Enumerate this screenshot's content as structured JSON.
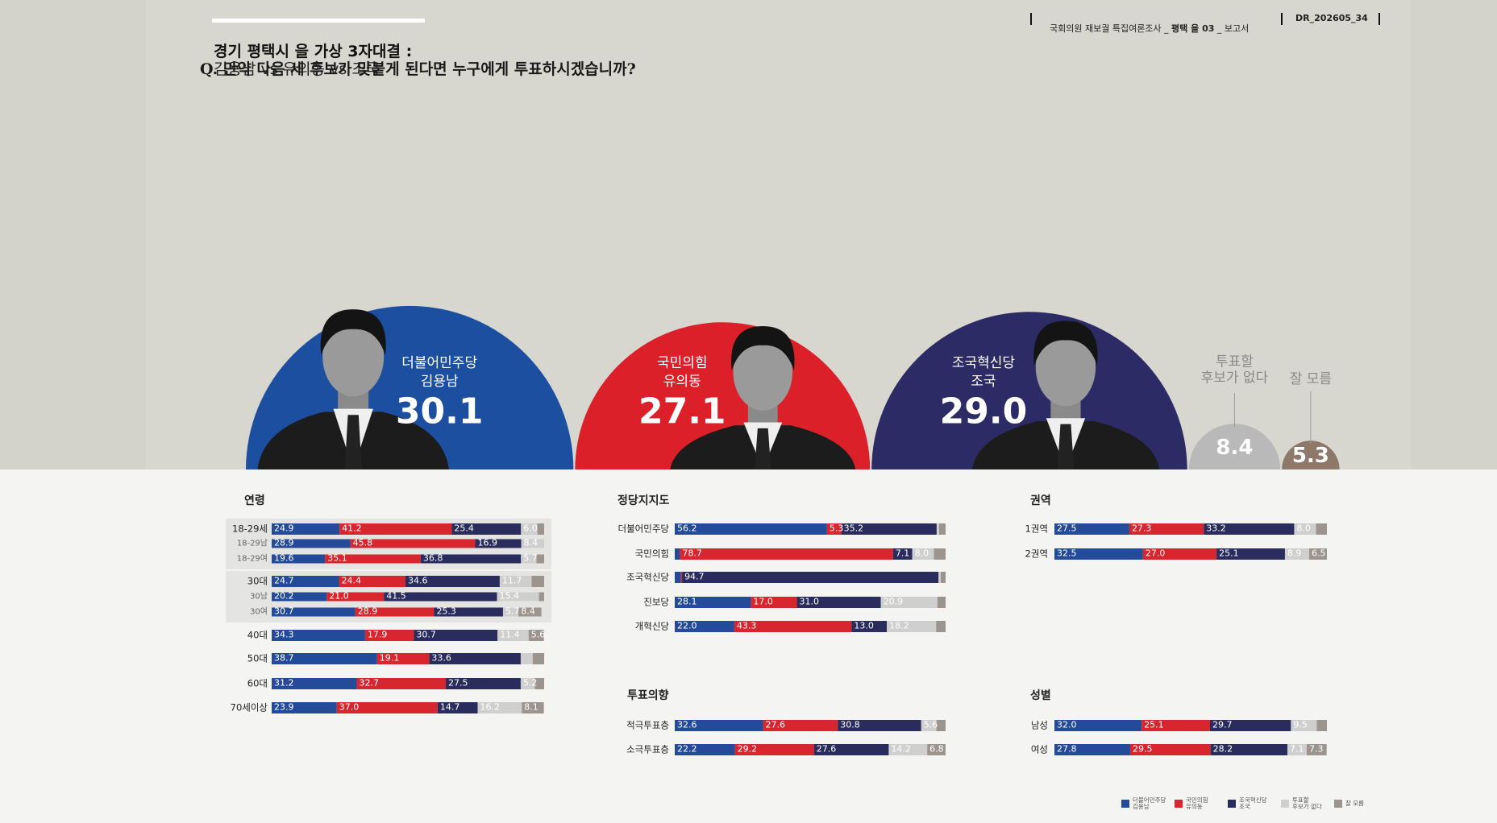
{
  "header": {
    "title": "경기 평택시 을 가상 3자대결 :",
    "subtitle": "김용남 vs 유의동 vs 조국",
    "question": "Q. 만약 다음 세 후보가 맞붙게 된다면 누구에게 투표하시겠습니까?",
    "survey": [
      "국회의원 재보궐 특집여론조사 _ ",
      "평택 을 03",
      " _ 보고서"
    ],
    "code": "DR_202605_34"
  },
  "chart_data": [
    {
      "type": "semicircle",
      "parties": [
        "더불어민주당",
        "국민의힘",
        "조국혁신당",
        null,
        null
      ],
      "categories": [
        "김용남",
        "유의동",
        "조국",
        "투표할\n후보가 없다",
        "잘 모름"
      ],
      "values": [
        30.1,
        27.1,
        29.0,
        8.4,
        5.3
      ],
      "value_labels": [
        "30.1",
        "27.1",
        "29.0",
        "8.4",
        "5.3"
      ],
      "colors": [
        "#1c4fa0",
        "#dc2029",
        "#2d2b66",
        "#b9b9b9",
        "#8d786a"
      ]
    },
    {
      "type": "stacked-bar",
      "xlim": [
        0,
        100
      ],
      "series": [
        {
          "name": "더불어민주당\n김용남",
          "color": "#234b9a"
        },
        {
          "name": "국민의힘\n유의동",
          "color": "#d8262e"
        },
        {
          "name": "조국혁신당\n조국",
          "color": "#2a2c5e"
        },
        {
          "name": "투표할\n후보가 없다",
          "color": "#cfcfcf"
        },
        {
          "name": "잘 모름",
          "color": "#9c948e"
        }
      ],
      "groups": [
        {
          "title": "연령",
          "categories": [
            "18-29세",
            "18-29남",
            "18-29여",
            "30대",
            "30남",
            "30여",
            "40대",
            "50대",
            "60대",
            "70세이상"
          ],
          "values": [
            [
              24.9,
              41.2,
              25.4,
              6.0,
              2.5
            ],
            [
              28.9,
              45.8,
              16.9,
              8.4,
              0
            ],
            [
              19.6,
              35.1,
              36.8,
              5.7,
              2.8
            ],
            [
              24.7,
              24.4,
              34.6,
              11.7,
              4.6
            ],
            [
              20.2,
              21.0,
              41.5,
              15.4,
              1.9
            ],
            [
              30.7,
              28.9,
              25.3,
              5.7,
              8.4
            ],
            [
              34.3,
              17.9,
              30.7,
              11.4,
              5.6
            ],
            [
              38.7,
              19.1,
              33.6,
              4.4,
              4.2
            ],
            [
              31.2,
              32.7,
              27.5,
              5.2,
              3.4
            ],
            [
              23.9,
              37.0,
              14.7,
              16.2,
              8.1
            ]
          ],
          "value_labels": [
            [
              "24.9",
              "41.2",
              "25.4",
              "6.0",
              null
            ],
            [
              "28.9",
              "45.8",
              "16.9",
              "8.4",
              null
            ],
            [
              "19.6",
              "35.1",
              "36.8",
              "5.7",
              null
            ],
            [
              "24.7",
              "24.4",
              "34.6",
              "11.7",
              null
            ],
            [
              "20.2",
              "21.0",
              "41.5",
              "15.4",
              null
            ],
            [
              "30.7",
              "28.9",
              "25.3",
              "5.7",
              "8.4"
            ],
            [
              "34.3",
              "17.9",
              "30.7",
              "11.4",
              "5.6"
            ],
            [
              "38.7",
              "19.1",
              "33.6",
              null,
              null
            ],
            [
              "31.2",
              "32.7",
              "27.5",
              "5.2",
              null
            ],
            [
              "23.9",
              "37.0",
              "14.7",
              "16.2",
              "8.1"
            ]
          ]
        },
        {
          "title": "정당지지도",
          "categories": [
            "더불어민주당",
            "국민의힘",
            "조국혁신당",
            "진보당",
            "개혁신당"
          ],
          "values": [
            [
              56.2,
              5.3,
              35.2,
              0.9,
              2.4
            ],
            [
              1.9,
              78.7,
              7.1,
              8.0,
              4.3
            ],
            [
              2.3,
              0.4,
              94.7,
              0.8,
              1.8
            ],
            [
              28.1,
              17.0,
              31.0,
              20.9,
              3.0
            ],
            [
              22.0,
              43.3,
              13.0,
              18.2,
              3.5
            ]
          ],
          "value_labels": [
            [
              "56.2",
              "5.3",
              "35.2",
              null,
              null
            ],
            [
              null,
              "78.7",
              "7.1",
              "8.0",
              null
            ],
            [
              null,
              null,
              "94.7",
              null,
              null
            ],
            [
              "28.1",
              "17.0",
              "31.0",
              "20.9",
              null
            ],
            [
              "22.0",
              "43.3",
              "13.0",
              "18.2",
              null
            ]
          ]
        },
        {
          "title": "권역",
          "categories": [
            "1권역",
            "2권역"
          ],
          "values": [
            [
              27.5,
              27.3,
              33.2,
              8.0,
              4.0
            ],
            [
              32.5,
              27.0,
              25.1,
              8.9,
              6.5
            ]
          ],
          "value_labels": [
            [
              "27.5",
              "27.3",
              "33.2",
              "8.0",
              null
            ],
            [
              "32.5",
              "27.0",
              "25.1",
              "8.9",
              "6.5"
            ]
          ]
        },
        {
          "title": "투표의향",
          "categories": [
            "적극투표층",
            "소극투표층"
          ],
          "values": [
            [
              32.6,
              27.6,
              30.8,
              5.6,
              3.4
            ],
            [
              22.2,
              29.2,
              27.6,
              14.2,
              6.8
            ]
          ],
          "value_labels": [
            [
              "32.6",
              "27.6",
              "30.8",
              "5.6",
              null
            ],
            [
              "22.2",
              "29.2",
              "27.6",
              "14.2",
              "6.8"
            ]
          ]
        },
        {
          "title": "성별",
          "categories": [
            "남성",
            "여성"
          ],
          "values": [
            [
              32.0,
              25.1,
              29.7,
              9.5,
              3.7
            ],
            [
              27.8,
              29.5,
              28.2,
              7.1,
              7.3
            ]
          ],
          "value_labels": [
            [
              "32.0",
              "25.1",
              "29.7",
              "9.5",
              null
            ],
            [
              "27.8",
              "29.5",
              "28.2",
              "7.1",
              "7.3"
            ]
          ]
        }
      ]
    }
  ]
}
